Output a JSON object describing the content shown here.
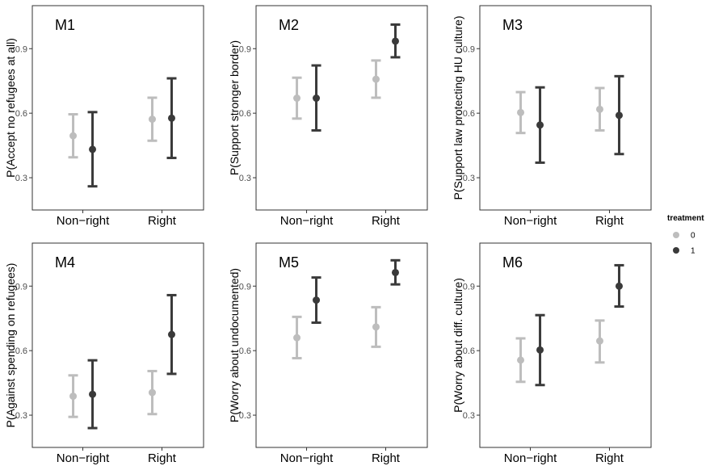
{
  "chart_data": {
    "type": "errorbar",
    "categories": [
      "Non−right",
      "Right"
    ],
    "legend": {
      "title": "treatment",
      "placement": "right",
      "entries": [
        {
          "label": "0",
          "color": "#bdbdbd"
        },
        {
          "label": "1",
          "color": "#3a3a3a"
        }
      ]
    },
    "ylim": [
      0.15,
      1.1
    ],
    "yticks": [
      0.3,
      0.6,
      0.9
    ],
    "ytick_labels": [
      "0.3",
      "0.6",
      "0.9"
    ],
    "grid": false,
    "panels": [
      {
        "title": "M1",
        "ylabel": "P(Accept no refugees at all)",
        "series": [
          {
            "treatment": "0",
            "points": [
              {
                "est": 0.495,
                "lo": 0.395,
                "hi": 0.595
              },
              {
                "est": 0.572,
                "lo": 0.472,
                "hi": 0.672
              }
            ]
          },
          {
            "treatment": "1",
            "points": [
              {
                "est": 0.432,
                "lo": 0.26,
                "hi": 0.605
              },
              {
                "est": 0.577,
                "lo": 0.392,
                "hi": 0.762
              }
            ]
          }
        ]
      },
      {
        "title": "M2",
        "ylabel": "P(Support stronger border)",
        "series": [
          {
            "treatment": "0",
            "points": [
              {
                "est": 0.67,
                "lo": 0.575,
                "hi": 0.765
              },
              {
                "est": 0.758,
                "lo": 0.672,
                "hi": 0.845
              }
            ]
          },
          {
            "treatment": "1",
            "points": [
              {
                "est": 0.67,
                "lo": 0.52,
                "hi": 0.822
              },
              {
                "est": 0.935,
                "lo": 0.86,
                "hi": 1.012
              }
            ]
          }
        ]
      },
      {
        "title": "M3",
        "ylabel": "P(Support law protecting HU culture)",
        "series": [
          {
            "treatment": "0",
            "points": [
              {
                "est": 0.603,
                "lo": 0.508,
                "hi": 0.698
              },
              {
                "est": 0.618,
                "lo": 0.52,
                "hi": 0.717
              }
            ]
          },
          {
            "treatment": "1",
            "points": [
              {
                "est": 0.545,
                "lo": 0.37,
                "hi": 0.72
              },
              {
                "est": 0.59,
                "lo": 0.41,
                "hi": 0.772
              }
            ]
          }
        ]
      },
      {
        "title": "M4",
        "ylabel": "P(Against spending on refugees)",
        "series": [
          {
            "treatment": "0",
            "points": [
              {
                "est": 0.388,
                "lo": 0.292,
                "hi": 0.485
              },
              {
                "est": 0.405,
                "lo": 0.305,
                "hi": 0.505
              }
            ]
          },
          {
            "treatment": "1",
            "points": [
              {
                "est": 0.397,
                "lo": 0.24,
                "hi": 0.555
              },
              {
                "est": 0.675,
                "lo": 0.492,
                "hi": 0.858
              }
            ]
          }
        ]
      },
      {
        "title": "M5",
        "ylabel": "P(Worry about undocumented)",
        "series": [
          {
            "treatment": "0",
            "points": [
              {
                "est": 0.66,
                "lo": 0.565,
                "hi": 0.757
              },
              {
                "est": 0.71,
                "lo": 0.618,
                "hi": 0.802
              }
            ]
          },
          {
            "treatment": "1",
            "points": [
              {
                "est": 0.835,
                "lo": 0.73,
                "hi": 0.94
              },
              {
                "est": 0.963,
                "lo": 0.908,
                "hi": 1.02
              }
            ]
          }
        ]
      },
      {
        "title": "M6",
        "ylabel": "P(Worry about diff. culture)",
        "series": [
          {
            "treatment": "0",
            "points": [
              {
                "est": 0.556,
                "lo": 0.455,
                "hi": 0.657
              },
              {
                "est": 0.645,
                "lo": 0.545,
                "hi": 0.74
              }
            ]
          },
          {
            "treatment": "1",
            "points": [
              {
                "est": 0.603,
                "lo": 0.44,
                "hi": 0.765
              },
              {
                "est": 0.9,
                "lo": 0.805,
                "hi": 0.997
              }
            ]
          }
        ]
      }
    ]
  }
}
